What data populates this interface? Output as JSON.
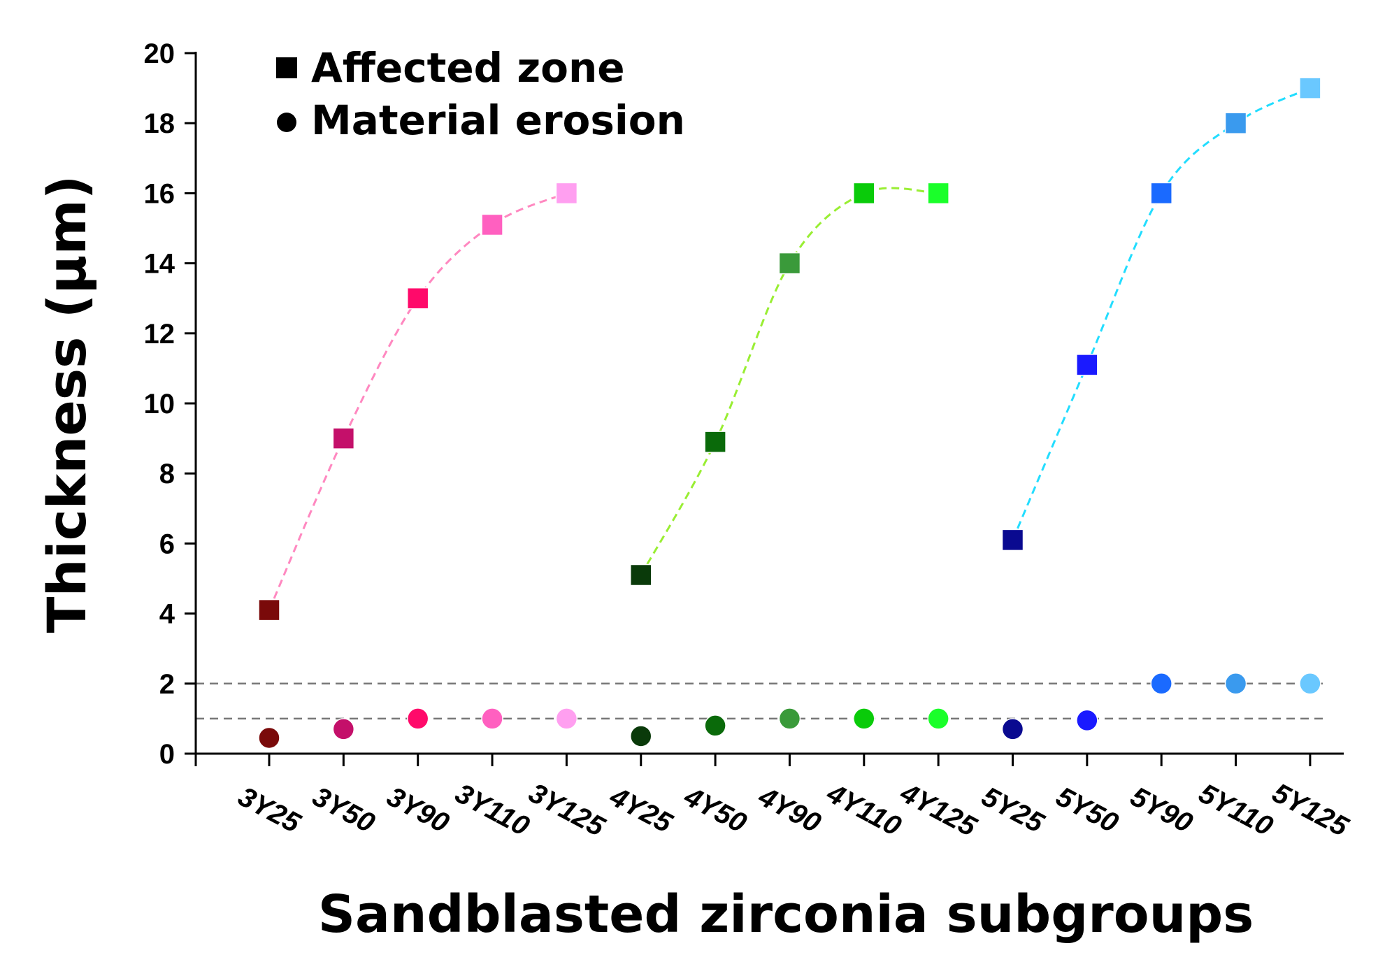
{
  "chart_data": {
    "type": "scatter",
    "xlabel": "Sandblasted zirconia subgroups",
    "ylabel": "Thickness (µm)",
    "ylim": [
      0,
      20
    ],
    "yticks": [
      0,
      2,
      4,
      6,
      8,
      10,
      12,
      14,
      16,
      18,
      20
    ],
    "categories": [
      "3Y25",
      "3Y50",
      "3Y90",
      "3Y110",
      "3Y125",
      "4Y25",
      "4Y50",
      "4Y90",
      "4Y110",
      "4Y125",
      "5Y25",
      "5Y50",
      "5Y90",
      "5Y110",
      "5Y125"
    ],
    "legend": {
      "position": "top-left",
      "entries": [
        {
          "label": "Affected zone",
          "marker": "square"
        },
        {
          "label": "Material erosion",
          "marker": "circle"
        }
      ]
    },
    "reference_lines": [
      {
        "y": 2,
        "color": "#777777",
        "style": "dashed"
      },
      {
        "y": 1,
        "color": "#777777",
        "style": "dashed"
      }
    ],
    "series": [
      {
        "group": "3Y",
        "marker": "square",
        "line_color": "#ff88c0",
        "categories": [
          "3Y25",
          "3Y50",
          "3Y90",
          "3Y110",
          "3Y125"
        ],
        "values": [
          4.1,
          9.0,
          13.0,
          15.1,
          16.0
        ],
        "colors": [
          "#7a0a0a",
          "#c4106a",
          "#ff0a6a",
          "#ff60c0",
          "#ff9ff0"
        ]
      },
      {
        "group": "4Y",
        "marker": "square",
        "line_color": "#99ee33",
        "categories": [
          "4Y25",
          "4Y50",
          "4Y90",
          "4Y110",
          "4Y125"
        ],
        "values": [
          5.1,
          8.9,
          14.0,
          16.0,
          16.0
        ],
        "colors": [
          "#0a3a0a",
          "#0a6a0a",
          "#3a9a3a",
          "#0acb0a",
          "#1aff2a"
        ]
      },
      {
        "group": "5Y",
        "marker": "square",
        "line_color": "#22ddff",
        "categories": [
          "5Y25",
          "5Y50",
          "5Y90",
          "5Y110",
          "5Y125"
        ],
        "values": [
          6.1,
          11.1,
          16.0,
          18.0,
          19.0
        ],
        "colors": [
          "#0a0a90",
          "#1a1aff",
          "#1a6aff",
          "#3a9aee",
          "#6ac8ff"
        ]
      },
      {
        "group": "3Y",
        "marker": "circle",
        "categories": [
          "3Y25",
          "3Y50",
          "3Y90",
          "3Y110",
          "3Y125"
        ],
        "values": [
          0.45,
          0.7,
          1.0,
          1.0,
          1.0
        ],
        "colors": [
          "#7a0a0a",
          "#c4106a",
          "#ff0a6a",
          "#ff60c0",
          "#ff9ff0"
        ]
      },
      {
        "group": "4Y",
        "marker": "circle",
        "categories": [
          "4Y25",
          "4Y50",
          "4Y90",
          "4Y110",
          "4Y125"
        ],
        "values": [
          0.5,
          0.8,
          1.0,
          1.0,
          1.0
        ],
        "colors": [
          "#0a3a0a",
          "#0a6a0a",
          "#3a9a3a",
          "#0acb0a",
          "#1aff2a"
        ]
      },
      {
        "group": "5Y",
        "marker": "circle",
        "categories": [
          "5Y25",
          "5Y50",
          "5Y90",
          "5Y110",
          "5Y125"
        ],
        "values": [
          0.7,
          0.95,
          2.0,
          2.0,
          2.0
        ],
        "colors": [
          "#0a0a90",
          "#1a1aff",
          "#1a6aff",
          "#3a9aee",
          "#6ac8ff"
        ]
      }
    ]
  }
}
